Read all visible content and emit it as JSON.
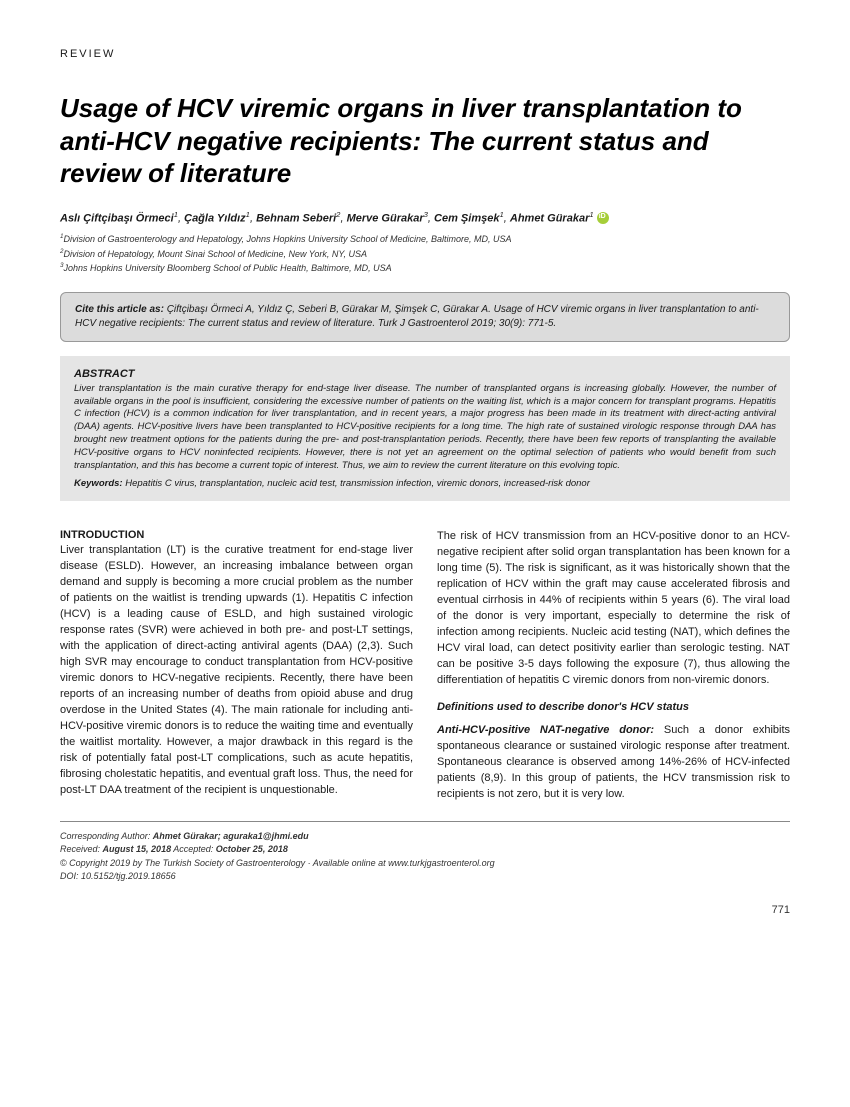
{
  "article_type": "REVIEW",
  "title": "Usage of HCV viremic organs in liver transplantation to anti-HCV negative recipients: The current status and review of literature",
  "authors": [
    {
      "name": "Aslı Çiftçibaşı Örmeci",
      "aff": "1"
    },
    {
      "name": "Çağla Yıldız",
      "aff": "1"
    },
    {
      "name": "Behnam Seberi",
      "aff": "2"
    },
    {
      "name": "Merve Gürakar",
      "aff": "3"
    },
    {
      "name": "Cem Şimşek",
      "aff": "1"
    },
    {
      "name": "Ahmet Gürakar",
      "aff": "1",
      "orcid": true
    }
  ],
  "affiliations": [
    "Division of Gastroenterology and Hepatology, Johns Hopkins University School of Medicine, Baltimore, MD, USA",
    "Division of Hepatology, Mount Sinai School of Medicine, New York, NY, USA",
    "Johns Hopkins University Bloomberg School of Public Health, Baltimore, MD, USA"
  ],
  "cite_label": "Cite this article as:",
  "cite_text": "Çiftçibaşı Örmeci A, Yıldız Ç, Seberi B, Gürakar M, Şimşek C, Gürakar A. Usage of HCV viremic organs in liver transplantation to anti-HCV negative recipients: The current status and review of literature. Turk J Gastroenterol 2019; 30(9): 771-5.",
  "abstract_heading": "ABSTRACT",
  "abstract_text": "Liver transplantation is the main curative therapy for end-stage liver disease. The number of transplanted organs is increasing globally. However, the number of available organs in the pool is insufficient, considering the excessive number of patients on the waiting list, which is a major concern for transplant programs. Hepatitis C infection (HCV) is a common indication for liver transplantation, and in recent years, a major progress has been made in its treatment with direct-acting antiviral (DAA) agents. HCV-positive livers have been transplanted to HCV-positive recipients for a long time. The high rate of sustained virologic response through DAA has brought new treatment options for the patients during the pre- and post-transplantation periods. Recently, there have been few reports of transplanting the available HCV-positive organs to HCV noninfected recipients. However, there is not yet an agreement on the optimal selection of patients who would benefit from such transplantation, and this has become a current topic of interest. Thus, we aim to review the current literature on this evolving topic.",
  "keywords_label": "Keywords:",
  "keywords_text": "Hepatitis C virus, transplantation, nucleic acid test, transmission infection, viremic donors, increased-risk donor",
  "introduction_heading": "INTRODUCTION",
  "introduction_text": "Liver transplantation (LT) is the curative treatment for end-stage liver disease (ESLD). However, an increasing imbalance between organ demand and supply is becoming a more crucial problem as the number of patients on the waitlist is trending upwards (1). Hepatitis C infection (HCV) is a leading cause of ESLD, and high sustained virologic response rates (SVR) were achieved in both pre- and post-LT settings, with the application of direct-acting antiviral agents (DAA) (2,3). Such high SVR may encourage to conduct transplantation from HCV-positive viremic donors to HCV-negative recipients. Recently, there have been reports of an increasing number of deaths from opioid abuse and drug overdose in the United States (4). The main rationale for including anti-HCV-positive viremic donors is to reduce the waiting time and eventually the waitlist mortality. However, a major drawback in this regard is the risk of potentially fatal post-LT complications, such as acute hepatitis, fibrosing cholestatic hepatitis, and eventual graft loss. Thus, the need for post-LT DAA treatment of the recipient is unquestionable.",
  "col2_para1": "The risk of HCV transmission from an HCV-positive donor to an HCV-negative recipient after solid organ transplantation has been known for a long time (5). The risk is significant, as it was historically shown that the replication of HCV within the graft may cause accelerated fibrosis and eventual cirrhosis in 44% of recipients within 5 years (6). The viral load of the donor is very important, especially to determine the risk of infection among recipients. Nucleic acid testing (NAT), which defines the HCV viral load, can detect positivity earlier than serologic testing. NAT can be positive 3-5 days following the exposure (7), thus allowing the differentiation of hepatitis C viremic donors from non-viremic donors.",
  "definitions_heading": "Definitions used to describe donor's HCV status",
  "def1_label": "Anti-HCV-positive NAT-negative donor:",
  "def1_text": "Such a donor exhibits spontaneous clearance or sustained virologic response after treatment. Spontaneous clearance is observed among 14%-26% of HCV-infected patients (8,9). In this group of patients, the HCV transmission risk to recipients is not zero, but it is very low.",
  "footer": {
    "corresponding_label": "Corresponding Author:",
    "corresponding_text": "Ahmet Gürakar; aguraka1@jhmi.edu",
    "received_label": "Received:",
    "received_date": "August 15, 2018",
    "accepted_label": "Accepted:",
    "accepted_date": "October 25, 2018",
    "copyright": "© Copyright 2019 by The Turkish Society of Gastroenterology · Available online at www.turkjgastroenterol.org",
    "doi": "DOI: 10.5152/tjg.2019.18656"
  },
  "page_number": "771"
}
